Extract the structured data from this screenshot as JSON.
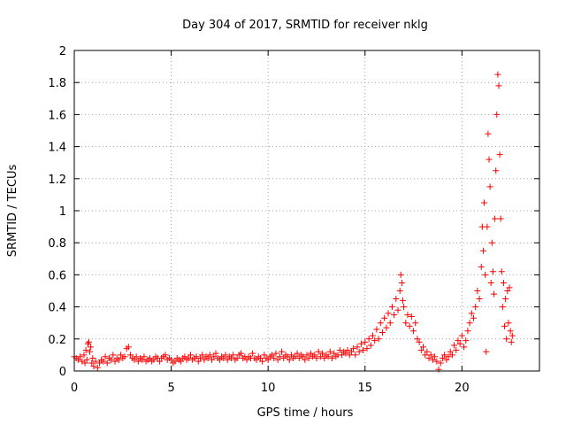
{
  "chart_data": {
    "type": "scatter",
    "title": "Day 304 of 2017, SRMTID for receiver nklg",
    "xlabel": "GPS time / hours",
    "ylabel": "SRMTID / TECUs",
    "xlim": [
      0,
      24
    ],
    "ylim": [
      0,
      2
    ],
    "xticks": [
      0,
      5,
      10,
      15,
      20
    ],
    "xtick_labels": [
      "0",
      "5",
      "10",
      "15",
      "20"
    ],
    "yticks": [
      0,
      0.2,
      0.4,
      0.6,
      0.8,
      1,
      1.2,
      1.4,
      1.6,
      1.8,
      2
    ],
    "ytick_labels": [
      "0",
      "0.2",
      "0.4",
      "0.6",
      "0.8",
      "1",
      "1.2",
      "1.4",
      "1.6",
      "1.8",
      "2"
    ],
    "grid": true,
    "marker": "+",
    "color": "#ff0000",
    "series": [
      {
        "name": "SRMTID",
        "points": [
          [
            0.0,
            0.09
          ],
          [
            0.1,
            0.08
          ],
          [
            0.2,
            0.07
          ],
          [
            0.3,
            0.09
          ],
          [
            0.4,
            0.06
          ],
          [
            0.5,
            0.1
          ],
          [
            0.55,
            0.05
          ],
          [
            0.6,
            0.13
          ],
          [
            0.65,
            0.07
          ],
          [
            0.7,
            0.17
          ],
          [
            0.75,
            0.18
          ],
          [
            0.8,
            0.12
          ],
          [
            0.85,
            0.15
          ],
          [
            0.9,
            0.05
          ],
          [
            0.95,
            0.08
          ],
          [
            1.0,
            0.03
          ],
          [
            1.1,
            0.06
          ],
          [
            1.2,
            0.02
          ],
          [
            1.3,
            0.05
          ],
          [
            1.4,
            0.07
          ],
          [
            1.5,
            0.06
          ],
          [
            1.6,
            0.09
          ],
          [
            1.7,
            0.05
          ],
          [
            1.8,
            0.08
          ],
          [
            1.9,
            0.07
          ],
          [
            2.0,
            0.1
          ],
          [
            2.1,
            0.06
          ],
          [
            2.2,
            0.08
          ],
          [
            2.3,
            0.07
          ],
          [
            2.4,
            0.1
          ],
          [
            2.5,
            0.08
          ],
          [
            2.6,
            0.09
          ],
          [
            2.7,
            0.14
          ],
          [
            2.8,
            0.15
          ],
          [
            2.9,
            0.1
          ],
          [
            3.0,
            0.08
          ],
          [
            3.1,
            0.07
          ],
          [
            3.2,
            0.09
          ],
          [
            3.3,
            0.06
          ],
          [
            3.4,
            0.08
          ],
          [
            3.5,
            0.07
          ],
          [
            3.6,
            0.09
          ],
          [
            3.7,
            0.06
          ],
          [
            3.8,
            0.07
          ],
          [
            3.9,
            0.08
          ],
          [
            4.0,
            0.06
          ],
          [
            4.1,
            0.07
          ],
          [
            4.2,
            0.09
          ],
          [
            4.3,
            0.08
          ],
          [
            4.4,
            0.06
          ],
          [
            4.5,
            0.08
          ],
          [
            4.6,
            0.09
          ],
          [
            4.7,
            0.1
          ],
          [
            4.8,
            0.07
          ],
          [
            4.9,
            0.08
          ],
          [
            5.0,
            0.07
          ],
          [
            5.1,
            0.05
          ],
          [
            5.2,
            0.06
          ],
          [
            5.3,
            0.08
          ],
          [
            5.4,
            0.07
          ],
          [
            5.5,
            0.06
          ],
          [
            5.6,
            0.08
          ],
          [
            5.7,
            0.09
          ],
          [
            5.8,
            0.07
          ],
          [
            5.9,
            0.08
          ],
          [
            6.0,
            0.1
          ],
          [
            6.1,
            0.07
          ],
          [
            6.2,
            0.08
          ],
          [
            6.3,
            0.09
          ],
          [
            6.4,
            0.06
          ],
          [
            6.5,
            0.08
          ],
          [
            6.6,
            0.1
          ],
          [
            6.7,
            0.07
          ],
          [
            6.8,
            0.09
          ],
          [
            6.9,
            0.08
          ],
          [
            7.0,
            0.1
          ],
          [
            7.1,
            0.07
          ],
          [
            7.2,
            0.09
          ],
          [
            7.3,
            0.11
          ],
          [
            7.4,
            0.08
          ],
          [
            7.5,
            0.07
          ],
          [
            7.6,
            0.09
          ],
          [
            7.7,
            0.08
          ],
          [
            7.8,
            0.1
          ],
          [
            7.9,
            0.07
          ],
          [
            8.0,
            0.09
          ],
          [
            8.1,
            0.08
          ],
          [
            8.2,
            0.1
          ],
          [
            8.3,
            0.07
          ],
          [
            8.4,
            0.08
          ],
          [
            8.5,
            0.1
          ],
          [
            8.6,
            0.11
          ],
          [
            8.7,
            0.08
          ],
          [
            8.8,
            0.09
          ],
          [
            8.9,
            0.07
          ],
          [
            9.0,
            0.09
          ],
          [
            9.1,
            0.08
          ],
          [
            9.2,
            0.11
          ],
          [
            9.3,
            0.08
          ],
          [
            9.4,
            0.07
          ],
          [
            9.5,
            0.09
          ],
          [
            9.6,
            0.08
          ],
          [
            9.7,
            0.06
          ],
          [
            9.8,
            0.1
          ],
          [
            9.9,
            0.08
          ],
          [
            10.0,
            0.07
          ],
          [
            10.1,
            0.09
          ],
          [
            10.2,
            0.1
          ],
          [
            10.3,
            0.08
          ],
          [
            10.4,
            0.11
          ],
          [
            10.5,
            0.07
          ],
          [
            10.6,
            0.09
          ],
          [
            10.7,
            0.12
          ],
          [
            10.8,
            0.08
          ],
          [
            10.9,
            0.1
          ],
          [
            11.0,
            0.09
          ],
          [
            11.1,
            0.07
          ],
          [
            11.2,
            0.1
          ],
          [
            11.3,
            0.08
          ],
          [
            11.4,
            0.09
          ],
          [
            11.5,
            0.11
          ],
          [
            11.6,
            0.08
          ],
          [
            11.7,
            0.1
          ],
          [
            11.8,
            0.09
          ],
          [
            11.9,
            0.07
          ],
          [
            12.0,
            0.1
          ],
          [
            12.1,
            0.08
          ],
          [
            12.2,
            0.11
          ],
          [
            12.3,
            0.09
          ],
          [
            12.4,
            0.1
          ],
          [
            12.5,
            0.08
          ],
          [
            12.6,
            0.12
          ],
          [
            12.7,
            0.09
          ],
          [
            12.8,
            0.11
          ],
          [
            12.9,
            0.08
          ],
          [
            13.0,
            0.1
          ],
          [
            13.1,
            0.09
          ],
          [
            13.2,
            0.12
          ],
          [
            13.3,
            0.08
          ],
          [
            13.4,
            0.11
          ],
          [
            13.5,
            0.09
          ],
          [
            13.6,
            0.1
          ],
          [
            13.7,
            0.13
          ],
          [
            13.8,
            0.1
          ],
          [
            13.9,
            0.12
          ],
          [
            14.0,
            0.11
          ],
          [
            14.1,
            0.13
          ],
          [
            14.2,
            0.1
          ],
          [
            14.3,
            0.12
          ],
          [
            14.4,
            0.14
          ],
          [
            14.5,
            0.1
          ],
          [
            14.6,
            0.15
          ],
          [
            14.7,
            0.12
          ],
          [
            14.8,
            0.17
          ],
          [
            14.9,
            0.13
          ],
          [
            15.0,
            0.18
          ],
          [
            15.1,
            0.14
          ],
          [
            15.2,
            0.2
          ],
          [
            15.3,
            0.16
          ],
          [
            15.4,
            0.22
          ],
          [
            15.5,
            0.19
          ],
          [
            15.6,
            0.26
          ],
          [
            15.7,
            0.2
          ],
          [
            15.8,
            0.3
          ],
          [
            15.9,
            0.24
          ],
          [
            16.0,
            0.33
          ],
          [
            16.1,
            0.27
          ],
          [
            16.2,
            0.36
          ],
          [
            16.3,
            0.3
          ],
          [
            16.4,
            0.4
          ],
          [
            16.5,
            0.35
          ],
          [
            16.6,
            0.45
          ],
          [
            16.7,
            0.38
          ],
          [
            16.8,
            0.5
          ],
          [
            16.85,
            0.6
          ],
          [
            16.9,
            0.55
          ],
          [
            16.95,
            0.44
          ],
          [
            17.0,
            0.4
          ],
          [
            17.1,
            0.3
          ],
          [
            17.2,
            0.35
          ],
          [
            17.3,
            0.28
          ],
          [
            17.4,
            0.34
          ],
          [
            17.5,
            0.25
          ],
          [
            17.6,
            0.3
          ],
          [
            17.7,
            0.2
          ],
          [
            17.8,
            0.18
          ],
          [
            17.9,
            0.13
          ],
          [
            18.0,
            0.15
          ],
          [
            18.1,
            0.1
          ],
          [
            18.2,
            0.12
          ],
          [
            18.3,
            0.08
          ],
          [
            18.4,
            0.1
          ],
          [
            18.5,
            0.07
          ],
          [
            18.6,
            0.09
          ],
          [
            18.7,
            0.06
          ],
          [
            18.8,
            0.01
          ],
          [
            18.9,
            0.05
          ],
          [
            19.0,
            0.08
          ],
          [
            19.1,
            0.1
          ],
          [
            19.2,
            0.07
          ],
          [
            19.3,
            0.09
          ],
          [
            19.4,
            0.12
          ],
          [
            19.5,
            0.1
          ],
          [
            19.6,
            0.16
          ],
          [
            19.7,
            0.13
          ],
          [
            19.8,
            0.19
          ],
          [
            19.9,
            0.17
          ],
          [
            20.0,
            0.22
          ],
          [
            20.1,
            0.15
          ],
          [
            20.2,
            0.19
          ],
          [
            20.3,
            0.25
          ],
          [
            20.4,
            0.3
          ],
          [
            20.5,
            0.36
          ],
          [
            20.6,
            0.33
          ],
          [
            20.7,
            0.4
          ],
          [
            20.8,
            0.5
          ],
          [
            20.9,
            0.45
          ],
          [
            21.0,
            0.65
          ],
          [
            21.05,
            0.9
          ],
          [
            21.1,
            0.75
          ],
          [
            21.15,
            1.05
          ],
          [
            21.2,
            0.6
          ],
          [
            21.25,
            0.12
          ],
          [
            21.3,
            0.9
          ],
          [
            21.35,
            1.48
          ],
          [
            21.4,
            1.32
          ],
          [
            21.45,
            1.15
          ],
          [
            21.5,
            0.55
          ],
          [
            21.55,
            0.8
          ],
          [
            21.6,
            0.62
          ],
          [
            21.65,
            0.48
          ],
          [
            21.7,
            0.95
          ],
          [
            21.75,
            1.25
          ],
          [
            21.8,
            1.6
          ],
          [
            21.85,
            1.85
          ],
          [
            21.9,
            1.78
          ],
          [
            21.95,
            1.35
          ],
          [
            22.0,
            0.95
          ],
          [
            22.05,
            0.62
          ],
          [
            22.1,
            0.4
          ],
          [
            22.15,
            0.55
          ],
          [
            22.2,
            0.28
          ],
          [
            22.25,
            0.45
          ],
          [
            22.3,
            0.2
          ],
          [
            22.35,
            0.5
          ],
          [
            22.4,
            0.3
          ],
          [
            22.45,
            0.52
          ],
          [
            22.5,
            0.25
          ],
          [
            22.55,
            0.18
          ],
          [
            22.6,
            0.22
          ]
        ]
      }
    ]
  }
}
